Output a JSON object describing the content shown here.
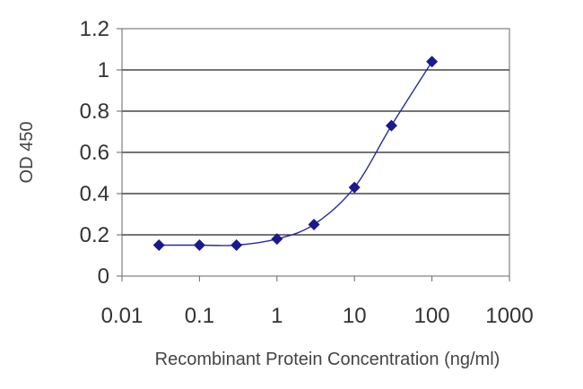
{
  "chart_data": {
    "type": "scatter",
    "title": "",
    "xlabel": "Recombinant Protein Concentration (ng/ml)",
    "ylabel": "OD 450",
    "x_scale": "log",
    "xlim": [
      0.01,
      1000
    ],
    "ylim": [
      0,
      1.2
    ],
    "x_ticks": [
      0.01,
      0.1,
      1,
      10,
      100,
      1000
    ],
    "x_tick_labels": [
      "0.01",
      "0.1",
      "1",
      "10",
      "100",
      "1000"
    ],
    "y_ticks": [
      0,
      0.2,
      0.4,
      0.6,
      0.8,
      1,
      1.2
    ],
    "y_tick_labels": [
      "0",
      "0.2",
      "0.4",
      "0.6",
      "0.8",
      "1",
      "1.2"
    ],
    "grid": "horizontal",
    "legend": "none",
    "series": [
      {
        "x": [
          0.03,
          0.1,
          0.3,
          1,
          3,
          10,
          30,
          100
        ],
        "y": [
          0.15,
          0.15,
          0.15,
          0.18,
          0.25,
          0.43,
          0.73,
          1.04
        ],
        "marker": "diamond",
        "fit_line": true
      }
    ],
    "colors": {
      "marker": "#1a1a8c",
      "line": "#2a2aa0",
      "grid": "#222222",
      "axis": "#666666"
    }
  }
}
